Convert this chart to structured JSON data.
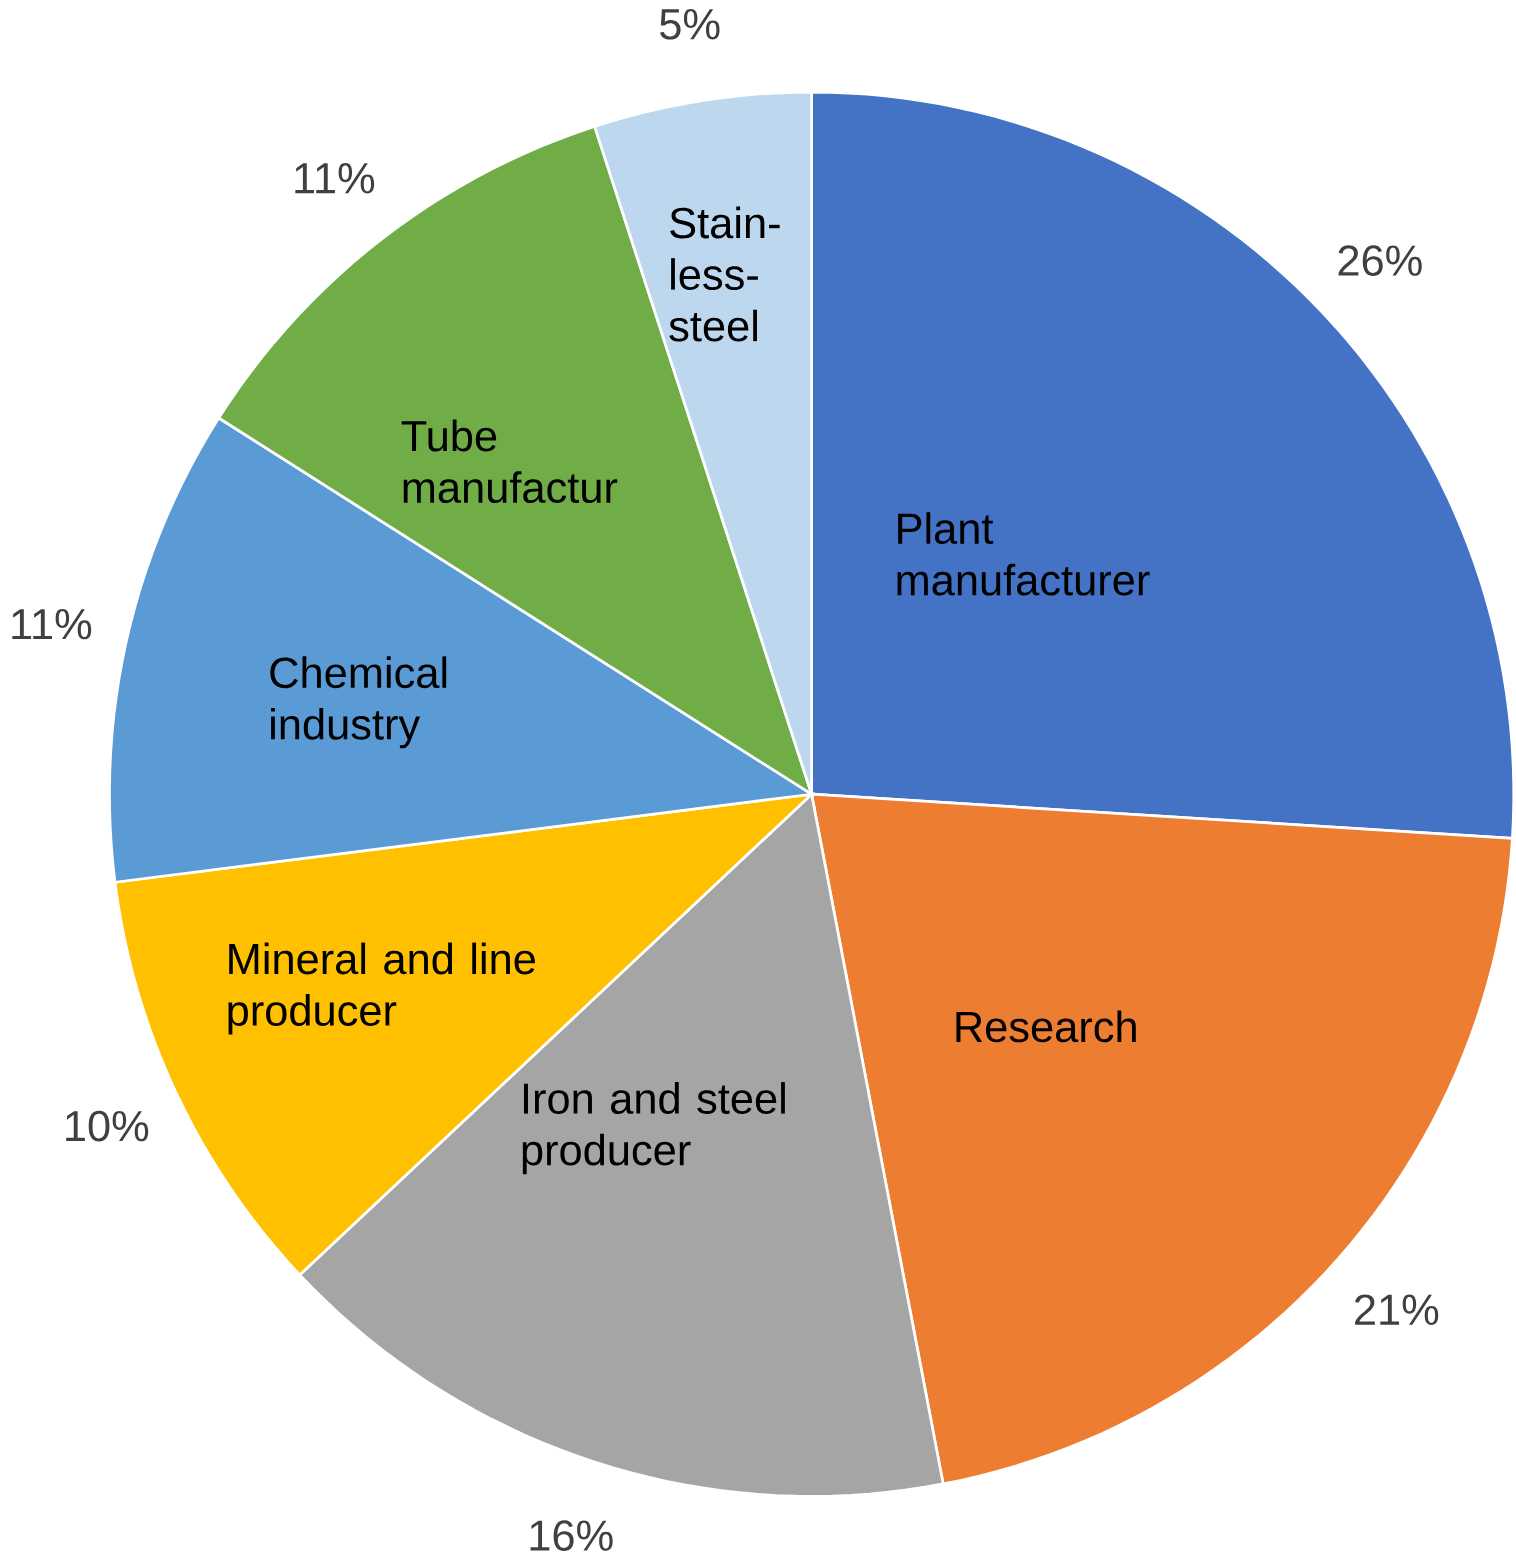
{
  "chart_data": {
    "type": "pie",
    "categories": [
      "Plant manufacturer",
      "Research",
      "Iron and steel producer",
      "Mineral and line producer",
      "Chemical industry",
      "Tube manufactur",
      "Stain-less-steel"
    ],
    "values": [
      26,
      21,
      16,
      10,
      11,
      11,
      5
    ],
    "value_labels": [
      "26%",
      "21%",
      "16%",
      "10%",
      "11%",
      "11%",
      "5%"
    ],
    "colors": [
      "#4472c4",
      "#ed7d31",
      "#a5a5a5",
      "#ffc000",
      "#5b9bd5",
      "#70ad47",
      "#bdd7ee"
    ]
  }
}
